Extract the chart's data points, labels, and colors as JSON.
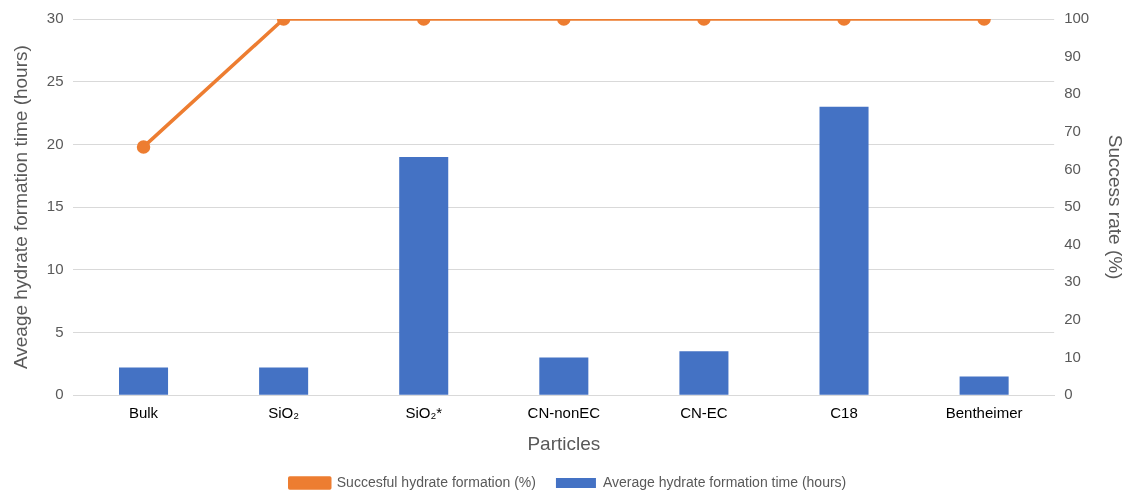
{
  "chart_data": {
    "type": "bar",
    "categories": [
      "Bulk",
      "SiO₂",
      "SiO₂*",
      "CN-nonEC",
      "CN-EC",
      "C18",
      "Bentheimer"
    ],
    "series": [
      {
        "name": "Average hydrate formation time (hours)",
        "color": "#4472c4",
        "values": [
          2.2,
          2.2,
          19,
          3.0,
          3.5,
          23,
          1.5
        ]
      },
      {
        "name": "Succesful hydrate formation (%)",
        "type": "line",
        "axis": "y2",
        "color": "#ed7d31",
        "values": [
          66,
          100,
          100,
          100,
          100,
          100,
          100
        ]
      }
    ],
    "xlabel": "Particles",
    "ylabel": "Aveage hydrate formation time (hours)",
    "y2label": "Success rate (%)",
    "ylim": [
      0,
      30
    ],
    "yticks": [
      0,
      5,
      10,
      15,
      20,
      25,
      30
    ],
    "y2lim": [
      0,
      100
    ],
    "y2ticks": [
      0,
      10,
      20,
      30,
      40,
      50,
      60,
      70,
      80,
      90,
      100
    ],
    "grid": "y",
    "legend": "bottom",
    "marker": "circle",
    "line_style": "solid"
  }
}
